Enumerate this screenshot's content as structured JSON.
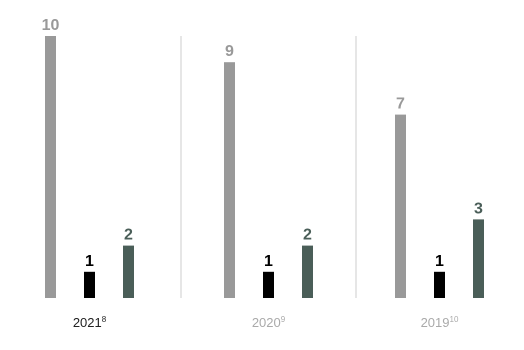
{
  "chart_data": {
    "type": "bar",
    "categories": [
      "2021",
      "2020",
      "2019"
    ],
    "category_footnotes": [
      "8",
      "9",
      "10"
    ],
    "series": [
      {
        "color": "#999999",
        "values": [
          10,
          9,
          7
        ]
      },
      {
        "color": "#000000",
        "values": [
          1,
          1,
          1
        ]
      },
      {
        "color": "#4a5e58",
        "values": [
          2,
          2,
          3
        ]
      }
    ],
    "ylim": [
      0,
      10
    ],
    "grid": false,
    "legend": "none",
    "category_label_colors": [
      "#222222",
      "#aaaaaa",
      "#aaaaaa"
    ],
    "value_label_colors": [
      "#999999",
      "#000000",
      "#4a5e58"
    ]
  }
}
